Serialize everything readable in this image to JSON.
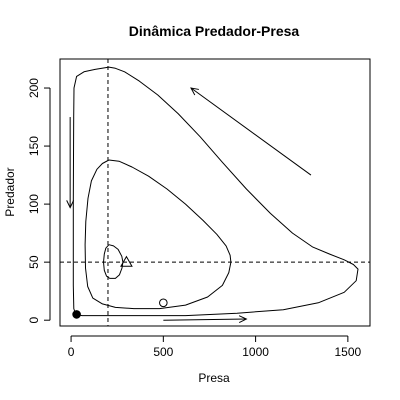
{
  "chart_data": {
    "type": "line",
    "title": "Dinâmica Predador-Presa",
    "xlabel": "Presa",
    "ylabel": "Predador",
    "xlim": [
      -60,
      1620
    ],
    "ylim": [
      -5,
      225
    ],
    "xticks": [
      0,
      500,
      1000,
      1500
    ],
    "yticks": [
      0,
      50,
      100,
      150,
      200
    ],
    "grid": false,
    "reference_lines": {
      "vertical_x": 200,
      "horizontal_y": 50,
      "style": "dashed"
    },
    "trajectories": [
      {
        "points": [
          [
            205,
            65
          ],
          [
            230,
            64
          ],
          [
            255,
            61
          ],
          [
            275,
            55
          ],
          [
            281,
            50
          ],
          [
            276,
            45
          ],
          [
            262,
            39
          ],
          [
            240,
            36
          ],
          [
            210,
            36
          ],
          [
            192,
            38
          ],
          [
            180,
            43
          ],
          [
            176,
            50
          ],
          [
            180,
            57
          ],
          [
            188,
            62
          ],
          [
            205,
            65
          ]
        ]
      },
      {
        "points": [
          [
            205,
            138
          ],
          [
            260,
            137
          ],
          [
            330,
            132
          ],
          [
            420,
            124
          ],
          [
            520,
            113
          ],
          [
            620,
            100
          ],
          [
            715,
            86
          ],
          [
            790,
            74
          ],
          [
            840,
            64
          ],
          [
            862,
            56
          ],
          [
            866,
            50
          ],
          [
            855,
            41
          ],
          [
            820,
            30
          ],
          [
            740,
            20
          ],
          [
            620,
            13
          ],
          [
            480,
            10
          ],
          [
            340,
            10
          ],
          [
            240,
            11
          ],
          [
            170,
            14
          ],
          [
            118,
            19
          ],
          [
            90,
            29
          ],
          [
            78,
            45
          ],
          [
            76,
            65
          ],
          [
            80,
            85
          ],
          [
            92,
            105
          ],
          [
            110,
            120
          ],
          [
            140,
            130
          ],
          [
            170,
            135
          ],
          [
            205,
            138
          ]
        ]
      },
      {
        "points": [
          [
            205,
            218
          ],
          [
            240,
            217
          ],
          [
            290,
            214
          ],
          [
            370,
            206
          ],
          [
            470,
            194
          ],
          [
            580,
            178
          ],
          [
            700,
            158
          ],
          [
            820,
            136
          ],
          [
            950,
            113
          ],
          [
            1080,
            92
          ],
          [
            1200,
            75
          ],
          [
            1310,
            63
          ],
          [
            1400,
            57
          ],
          [
            1480,
            52
          ],
          [
            1530,
            48
          ],
          [
            1555,
            44
          ],
          [
            1545,
            34
          ],
          [
            1480,
            24
          ],
          [
            1340,
            15
          ],
          [
            1150,
            9
          ],
          [
            900,
            6
          ],
          [
            620,
            4
          ],
          [
            350,
            4
          ],
          [
            160,
            4
          ],
          [
            60,
            4
          ],
          [
            25,
            5
          ],
          [
            15,
            10
          ],
          [
            12,
            30
          ],
          [
            12,
            60
          ],
          [
            12,
            100
          ],
          [
            13,
            140
          ],
          [
            14,
            175
          ],
          [
            16,
            200
          ],
          [
            30,
            210
          ],
          [
            70,
            214
          ],
          [
            130,
            216
          ],
          [
            205,
            218
          ]
        ]
      }
    ],
    "markers": [
      {
        "shape": "filled-circle",
        "x": 30,
        "y": 5
      },
      {
        "shape": "open-circle",
        "x": 500,
        "y": 15
      },
      {
        "shape": "open-triangle",
        "x": 300,
        "y": 50
      }
    ],
    "arrows": [
      {
        "from": [
          1300,
          125
        ],
        "to": [
          650,
          200
        ]
      },
      {
        "from": [
          -5,
          175
        ],
        "to": [
          -5,
          97
        ]
      },
      {
        "from": [
          500,
          0
        ],
        "to": [
          950,
          1
        ]
      }
    ]
  }
}
